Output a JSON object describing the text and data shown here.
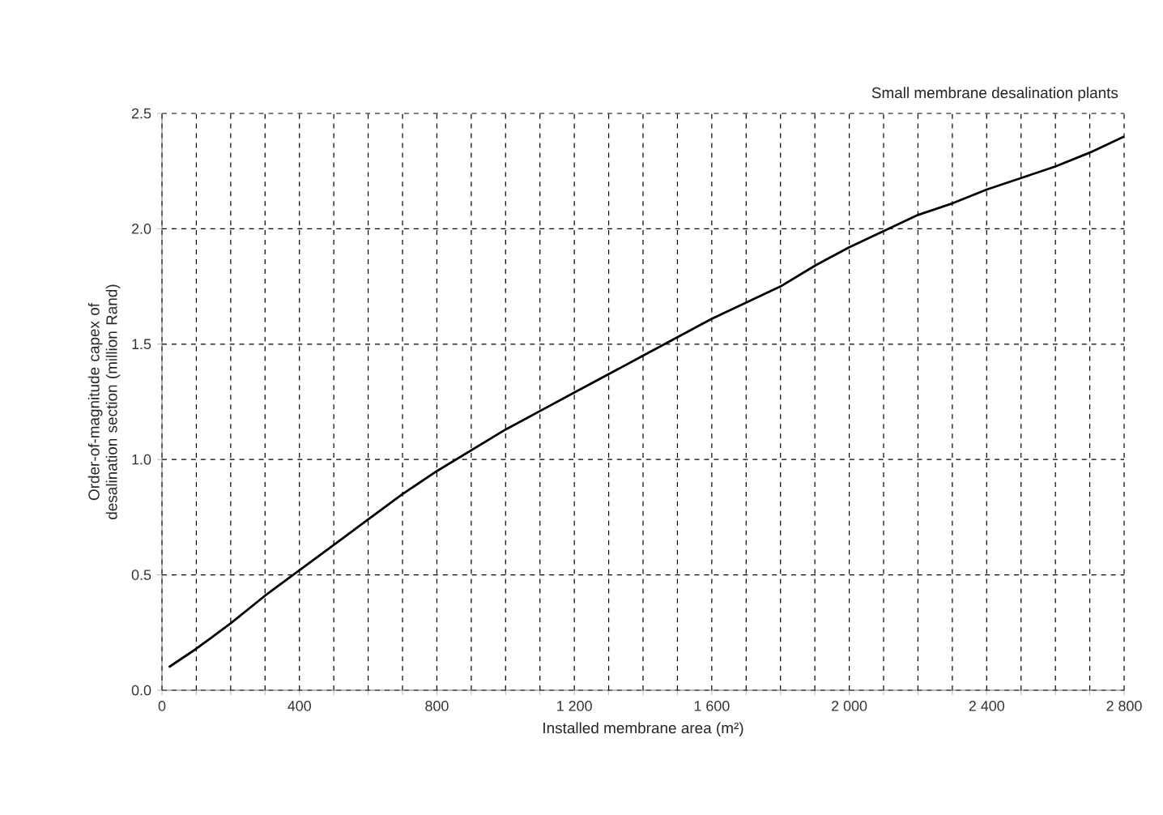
{
  "chart_data": {
    "type": "line",
    "title": "Small membrane desalination plants",
    "xlabel": "Installed membrane area (m²)",
    "ylabel": "Order-of-magnitude capex of desalination section (million Rand)",
    "x": [
      20,
      100,
      200,
      300,
      400,
      500,
      600,
      700,
      800,
      900,
      1000,
      1100,
      1200,
      1300,
      1400,
      1500,
      1600,
      1700,
      1800,
      1900,
      2000,
      2100,
      2200,
      2300,
      2400,
      2500,
      2600,
      2700,
      2800
    ],
    "series": [
      {
        "color": "#000000",
        "values": [
          0.1,
          0.18,
          0.29,
          0.41,
          0.52,
          0.63,
          0.74,
          0.85,
          0.95,
          1.04,
          1.13,
          1.21,
          1.29,
          1.37,
          1.45,
          1.53,
          1.61,
          1.68,
          1.75,
          1.84,
          1.92,
          1.99,
          2.06,
          2.11,
          2.17,
          2.22,
          2.27,
          2.33,
          2.4
        ]
      }
    ],
    "xlim": [
      0,
      2800
    ],
    "ylim": [
      0,
      2.5
    ],
    "xticks": [
      0,
      {
        "value": 100,
        "label": null
      },
      {
        "value": 200,
        "label": null
      },
      {
        "value": 300,
        "label": null
      },
      400,
      {
        "value": 500,
        "label": null
      },
      {
        "value": 600,
        "label": null
      },
      {
        "value": 700,
        "label": null
      },
      800,
      {
        "value": 900,
        "label": null
      },
      {
        "value": 1000,
        "label": null
      },
      {
        "value": 1100,
        "label": null
      },
      {
        "value": 1200,
        "label": "1 200"
      },
      {
        "value": 1300,
        "label": null
      },
      {
        "value": 1400,
        "label": null
      },
      {
        "value": 1500,
        "label": null
      },
      {
        "value": 1600,
        "label": "1 600"
      },
      {
        "value": 1700,
        "label": null
      },
      {
        "value": 1800,
        "label": null
      },
      {
        "value": 1900,
        "label": null
      },
      {
        "value": 2000,
        "label": "2 000"
      },
      {
        "value": 2100,
        "label": null
      },
      {
        "value": 2200,
        "label": null
      },
      {
        "value": 2300,
        "label": null
      },
      {
        "value": 2400,
        "label": "2 400"
      },
      {
        "value": 2500,
        "label": null
      },
      {
        "value": 2600,
        "label": null
      },
      {
        "value": 2700,
        "label": null
      },
      {
        "value": 2800,
        "label": "2 800"
      }
    ],
    "yticks": [
      {
        "value": 0,
        "label": "0.0"
      },
      {
        "value": 0.5,
        "label": "0.5"
      },
      {
        "value": 1,
        "label": "1.0"
      },
      {
        "value": 1.5,
        "label": "1.5"
      },
      {
        "value": 2,
        "label": "2.0"
      },
      {
        "value": 2.5,
        "label": "2.5"
      }
    ],
    "grid": true,
    "line_style": "solid"
  }
}
